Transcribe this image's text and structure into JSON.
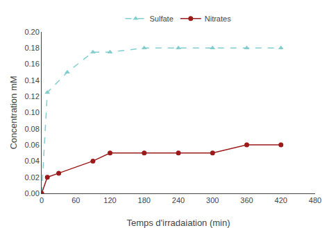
{
  "chart_data": {
    "type": "line",
    "xlabel": "Temps d'irradaiation (min)",
    "ylabel": "Concentration mM",
    "series": [
      {
        "name": "Sulfate",
        "color": "#82cece",
        "marker": "triangle-up",
        "line_style": "dashed",
        "x": [
          0,
          10,
          45,
          90,
          120,
          180,
          240,
          300,
          360,
          420
        ],
        "values": [
          0.0,
          0.125,
          0.15,
          0.175,
          0.175,
          0.18,
          0.18,
          0.18,
          0.18,
          0.18
        ]
      },
      {
        "name": "Nitrates",
        "color": "#9b1a1a",
        "marker": "circle",
        "line_style": "solid",
        "x": [
          0,
          10,
          30,
          90,
          120,
          180,
          240,
          300,
          360,
          420
        ],
        "values": [
          0.0,
          0.02,
          0.025,
          0.04,
          0.05,
          0.05,
          0.05,
          0.05,
          0.06,
          0.06
        ]
      }
    ],
    "xlim": [
      0,
      480
    ],
    "ylim": [
      0.0,
      0.2
    ],
    "xticks": [
      0,
      60,
      120,
      180,
      240,
      300,
      360,
      420,
      480
    ],
    "yticks": [
      {
        "value": 0.0,
        "label": "0.00"
      },
      0.02,
      0.04,
      0.06,
      0.08,
      {
        "value": 0.1,
        "label": "0.10"
      },
      0.12,
      0.14,
      0.16,
      0.18,
      {
        "value": 0.2,
        "label": "0.20"
      }
    ],
    "grid": false,
    "legend": "top"
  }
}
